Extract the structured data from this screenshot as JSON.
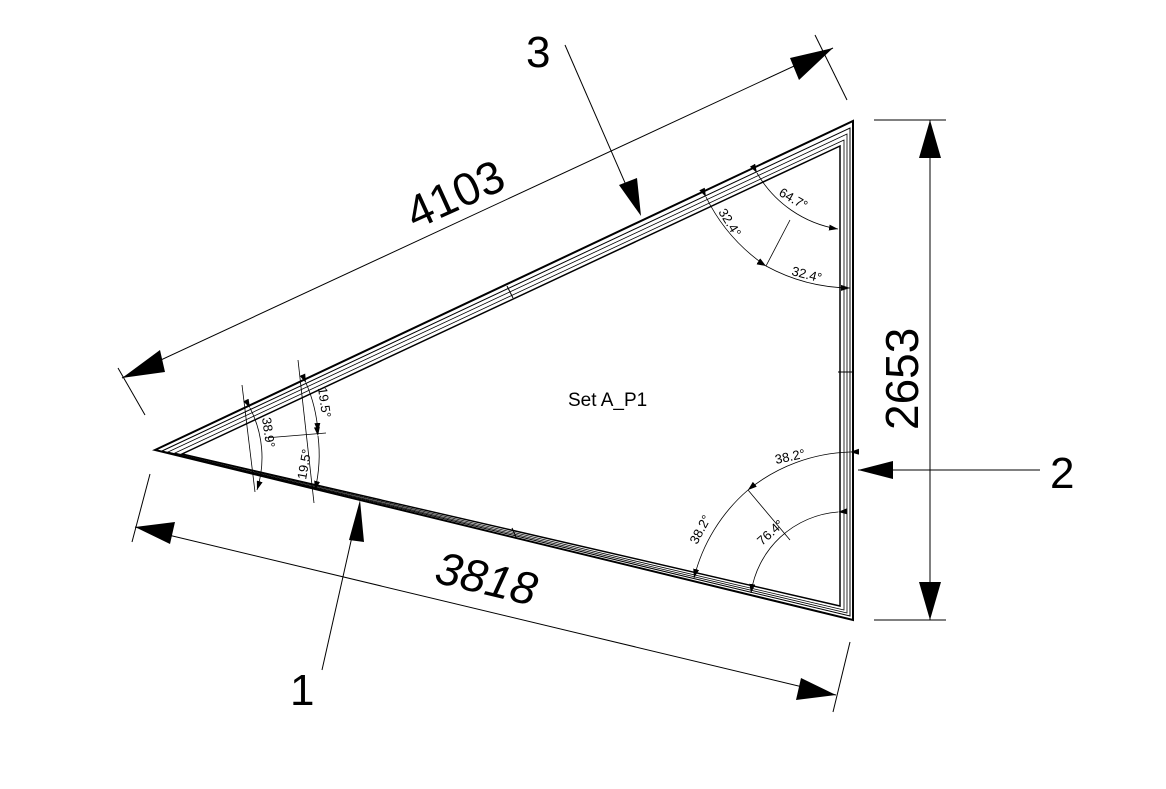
{
  "panel_label": "Set A_P1",
  "dimensions": {
    "hypotenuse": "4103",
    "bottom": "3818",
    "right": "2653"
  },
  "callouts": {
    "c1": "1",
    "c2": "2",
    "c3": "3"
  },
  "angles": {
    "left_total": "38.9°",
    "left_upper_half": "19.5°",
    "left_lower_half": "19.5°",
    "top_total": "64.7°",
    "top_left_half": "32.4°",
    "top_right_half": "32.4°",
    "bottom_total": "76.4°",
    "bottom_upper_half": "38.2°",
    "bottom_lower_half": "38.2°"
  }
}
